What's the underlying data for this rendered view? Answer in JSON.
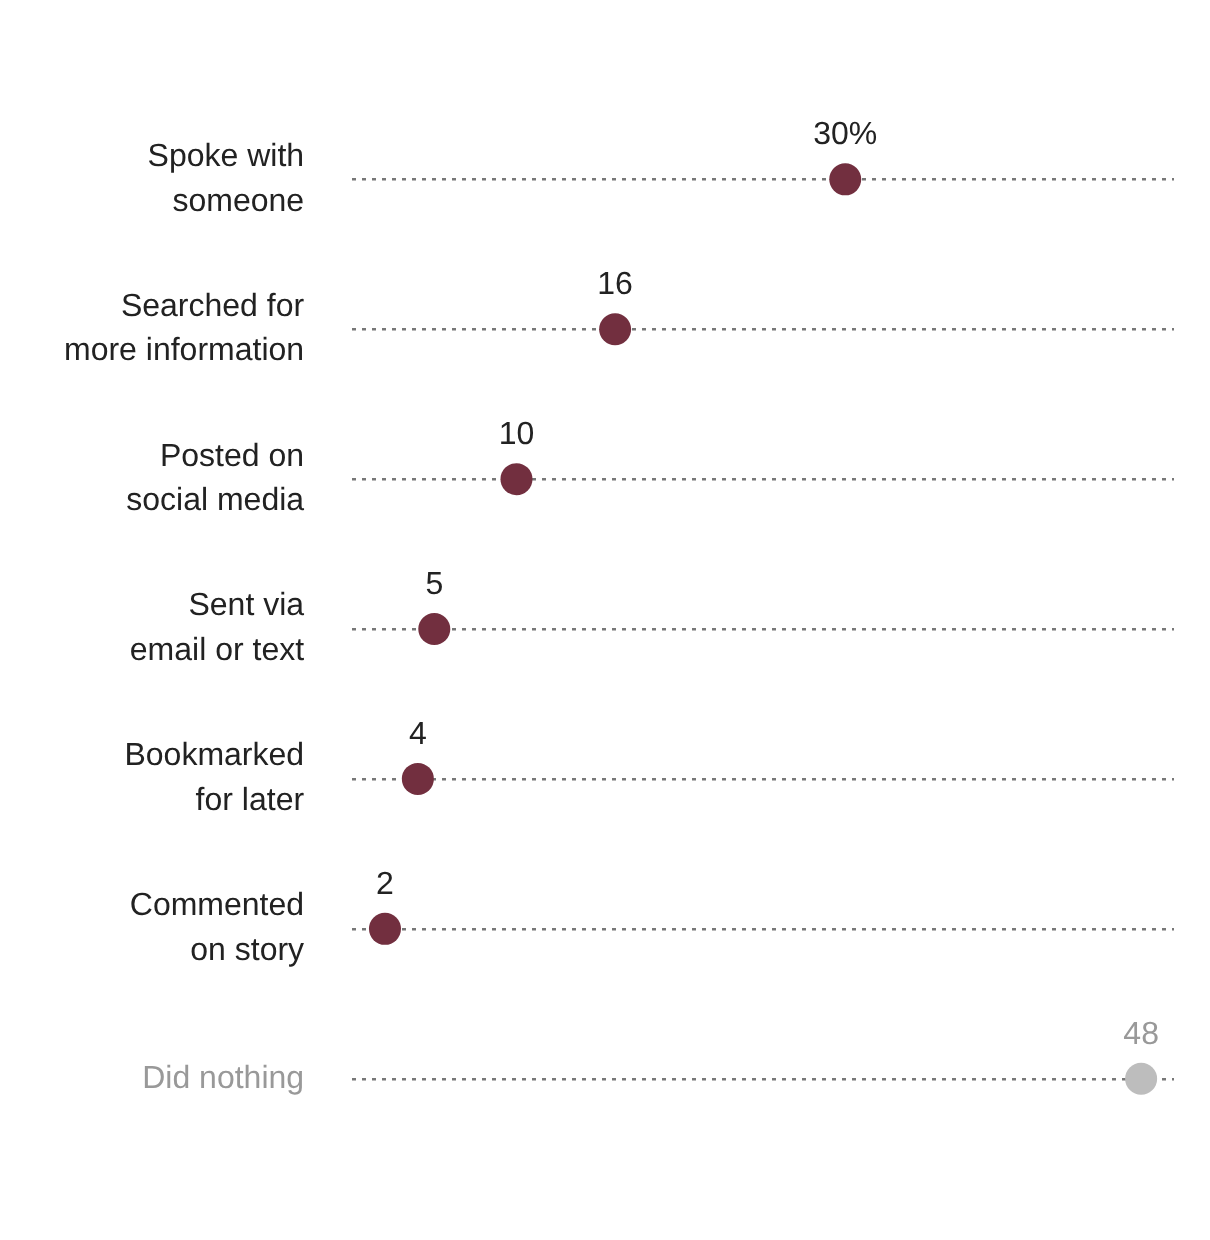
{
  "chart_data": {
    "type": "scatter",
    "orientation": "horizontal",
    "categories": [
      "Spoke with\nsomeone",
      "Searched for\nmore information",
      "Posted on\nsocial media",
      "Sent via\nemail or text",
      "Bookmarked\nfor later",
      "Commented\non story",
      "Did nothing"
    ],
    "values": [
      30,
      16,
      10,
      5,
      4,
      2,
      48
    ],
    "value_labels": [
      "30%",
      "16",
      "10",
      "5",
      "4",
      "2",
      "48"
    ],
    "colors": [
      "#722f3f",
      "#722f3f",
      "#722f3f",
      "#722f3f",
      "#722f3f",
      "#722f3f",
      "#bdbdbd"
    ],
    "tick_labels": "y",
    "grid": "y",
    "marker": "circle"
  }
}
